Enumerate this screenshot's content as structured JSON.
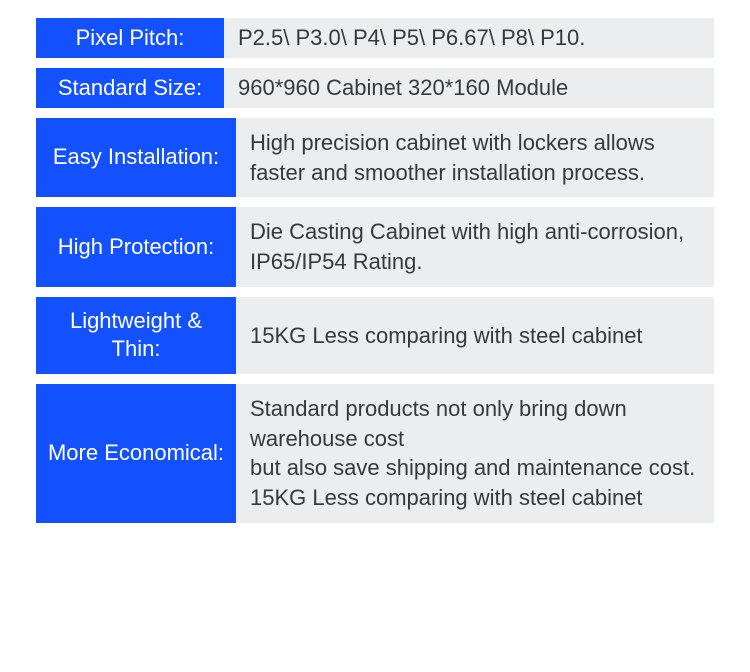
{
  "colors": {
    "label_bg": "#1351ff",
    "label_text": "#ffffff",
    "value_bg": "#ecedef",
    "value_text": "#39393b"
  },
  "rows": [
    {
      "label": "Pixel Pitch:",
      "value": "P2.5\\ P3.0\\ P4\\ P5\\ P6.67\\ P8\\ P10.",
      "size": "small"
    },
    {
      "label": "Standard Size:",
      "value": "960*960 Cabinet    320*160 Module",
      "size": "small"
    },
    {
      "label": "Easy\nInstallation:",
      "value": "High precision cabinet with lockers allows faster and smoother installation process.",
      "size": "big"
    },
    {
      "label": "High\nProtection:",
      "value": "Die Casting Cabinet with high anti-corrosion, IP65/IP54 Rating.",
      "size": "big"
    },
    {
      "label": "Lightweight\n& Thin:",
      "value": "15KG Less comparing with steel cabinet",
      "size": "big"
    },
    {
      "label": "More\nEconomical:",
      "value": "Standard products not only bring down warehouse cost\nbut also save shipping and maintenance cost.\n15KG Less comparing with steel cabinet",
      "size": "big"
    }
  ]
}
